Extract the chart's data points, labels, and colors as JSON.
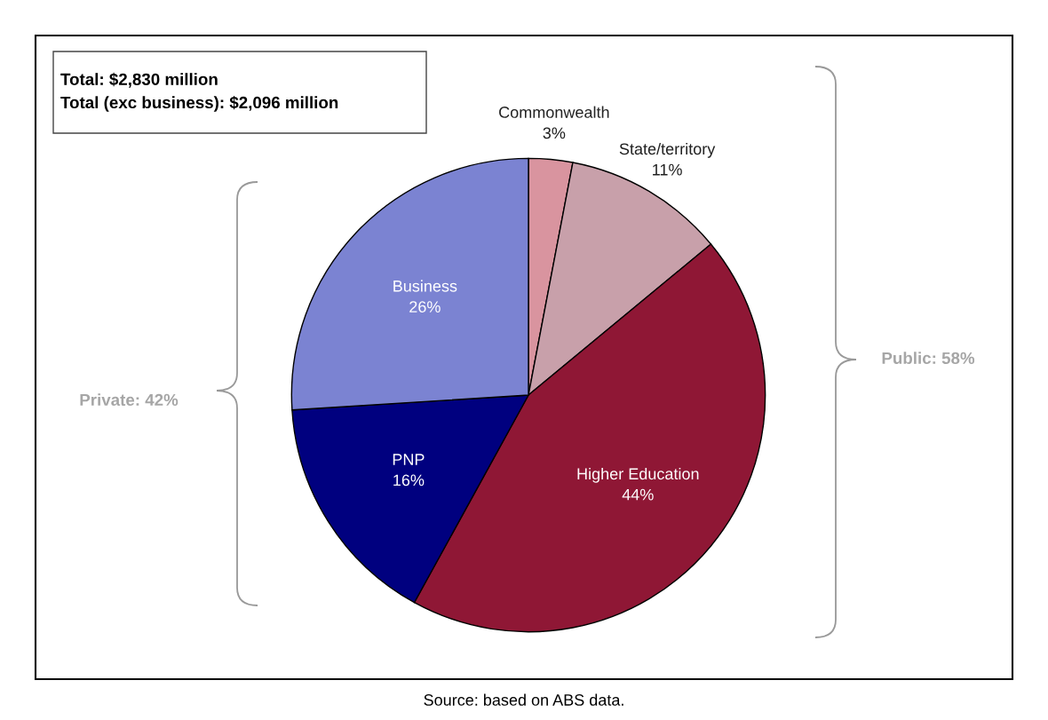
{
  "chart_data": {
    "type": "pie",
    "categories": [
      "Commonwealth",
      "State/territory",
      "Higher Education",
      "PNP",
      "Business"
    ],
    "values": [
      3,
      11,
      44,
      16,
      26
    ],
    "value_labels": [
      "3%",
      "11%",
      "44%",
      "16%",
      "26%"
    ],
    "colors": [
      "#d9949f",
      "#c8a0aa",
      "#8f1735",
      "#00007f",
      "#7b83d2"
    ],
    "annotations": [
      "Total: $2,830 million\nTotal (exc business): $2,096 million",
      "Private: 42%",
      "Public: 58%",
      "Source: based on ABS data."
    ]
  }
}
